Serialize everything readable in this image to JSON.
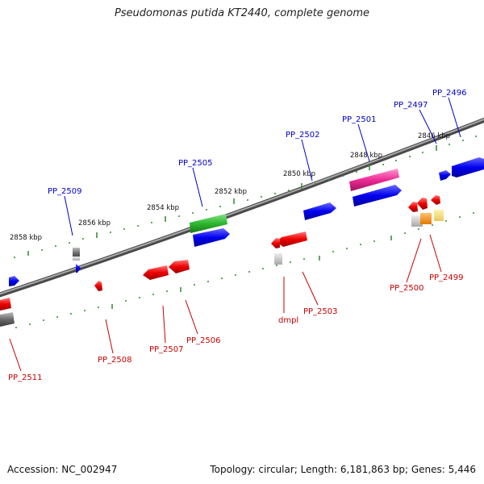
{
  "header": {
    "title": "Pseudomonas putida KT2440, complete genome"
  },
  "footer": {
    "accession": "Accession: NC_002947",
    "topology": "Topology: circular; Length: 6,181,863 bp; Genes: 5,446"
  },
  "colors": {
    "backbone": "#7a7a7a",
    "forward_gene": "#0000e6",
    "reverse_gene": "#e60000",
    "tick": "#2a8a2a",
    "label_forward": "#0000c8",
    "label_reverse": "#c80000"
  },
  "kbp_labels": [
    "2846 kbp",
    "2848 kbp",
    "2850 kbp",
    "2852 kbp",
    "2854 kbp",
    "2856 kbp",
    "2858 kbp"
  ],
  "forward_gene_labels": [
    "PP_2496",
    "PP_2497",
    "PP_2501",
    "PP_2502",
    "PP_2505",
    "PP_2509"
  ],
  "reverse_gene_labels": [
    "PP_2499",
    "PP_2500",
    "PP_2503",
    "dmpl",
    "PP_2506",
    "PP_2507",
    "PP_2508",
    "PP_2511"
  ]
}
